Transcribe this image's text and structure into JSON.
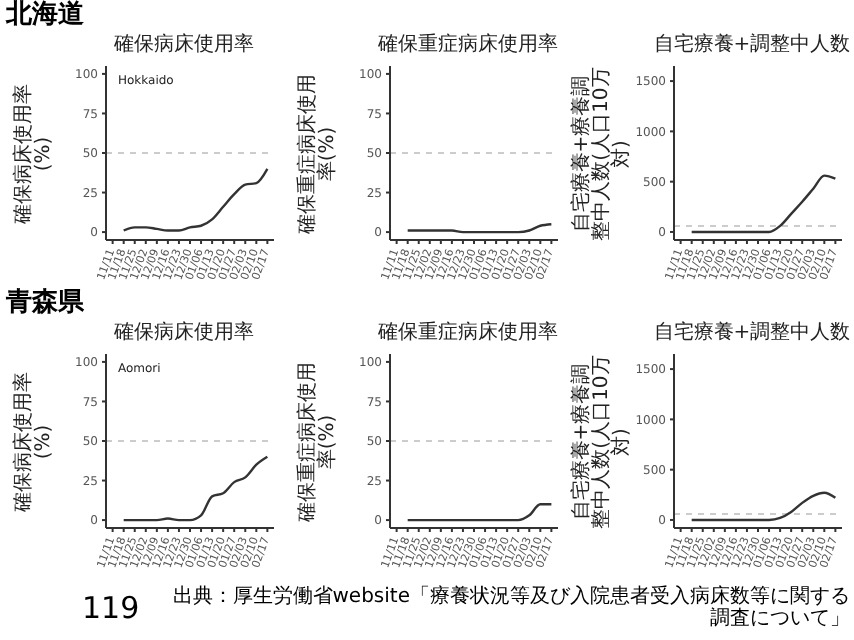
{
  "chart_data": [
    {
      "type": "line",
      "title": "確保病床使用率",
      "ylabel": "確保病床使用率(%)",
      "annotations": [
        "北海道",
        "Hokkaido"
      ],
      "categories": [
        "11/11",
        "11/18",
        "11/25",
        "12/02",
        "12/09",
        "12/16",
        "12/23",
        "12/30",
        "01/06",
        "01/13",
        "01/20",
        "01/27",
        "02/03",
        "02/10",
        "02/17"
      ],
      "color": "#333333",
      "values": [
        null,
        1,
        3,
        3,
        2,
        1,
        1,
        3,
        4,
        8,
        16,
        24,
        30,
        31,
        40
      ],
      "ylim": [
        -5,
        105
      ],
      "yticks": [
        0,
        25,
        50,
        75,
        100
      ],
      "ref_lines": [
        {
          "axis": "y",
          "value": 50,
          "color": "#cccccc",
          "line_style": "dashed"
        }
      ],
      "grid": false,
      "legend": false,
      "marker": "none",
      "line_style": "solid"
    },
    {
      "type": "line",
      "title": "確保重症病床使用率",
      "ylabel": "確保重症病床使用率(%)",
      "categories": [
        "11/11",
        "11/18",
        "11/25",
        "12/02",
        "12/09",
        "12/16",
        "12/23",
        "12/30",
        "01/06",
        "01/13",
        "01/20",
        "01/27",
        "02/03",
        "02/10",
        "02/17"
      ],
      "color": "#333333",
      "values": [
        null,
        1,
        1,
        1,
        1,
        1,
        0,
        0,
        0,
        0,
        0,
        0,
        1,
        4,
        5
      ],
      "ylim": [
        -5,
        105
      ],
      "yticks": [
        0,
        25,
        50,
        75,
        100
      ],
      "ref_lines": [
        {
          "axis": "y",
          "value": 50,
          "color": "#cccccc",
          "line_style": "dashed"
        }
      ],
      "grid": false,
      "legend": false,
      "marker": "none",
      "line_style": "solid"
    },
    {
      "type": "line",
      "title": "自宅療養+調整中人数",
      "ylabel": "自宅療養+療養調整中人数(人口10万対)",
      "categories": [
        "11/11",
        "11/18",
        "11/25",
        "12/02",
        "12/09",
        "12/16",
        "12/23",
        "12/30",
        "01/06",
        "01/13",
        "01/20",
        "01/27",
        "02/03",
        "02/10",
        "02/17"
      ],
      "color": "#333333",
      "values": [
        null,
        0,
        0,
        0,
        0,
        0,
        0,
        0,
        0,
        60,
        180,
        300,
        430,
        560,
        530
      ],
      "ylim": [
        -80,
        1650
      ],
      "yticks": [
        0,
        500,
        1000,
        1500
      ],
      "ref_lines": [
        {
          "axis": "y",
          "value": 60,
          "color": "#cccccc",
          "line_style": "dashed"
        }
      ],
      "grid": false,
      "legend": false,
      "marker": "none",
      "line_style": "solid"
    },
    {
      "type": "line",
      "title": "確保病床使用率",
      "ylabel": "確保病床使用率(%)",
      "annotations": [
        "青森県",
        "Aomori"
      ],
      "categories": [
        "11/11",
        "11/18",
        "11/25",
        "12/02",
        "12/09",
        "12/16",
        "12/23",
        "12/30",
        "01/06",
        "01/13",
        "01/20",
        "01/27",
        "02/03",
        "02/10",
        "02/17"
      ],
      "color": "#333333",
      "values": [
        null,
        0,
        0,
        0,
        0,
        1,
        0,
        0,
        3,
        15,
        17,
        24,
        27,
        35,
        40
      ],
      "ylim": [
        -5,
        105
      ],
      "yticks": [
        0,
        25,
        50,
        75,
        100
      ],
      "ref_lines": [
        {
          "axis": "y",
          "value": 50,
          "color": "#cccccc",
          "line_style": "dashed"
        }
      ],
      "grid": false,
      "legend": false,
      "marker": "none",
      "line_style": "solid"
    },
    {
      "type": "line",
      "title": "確保重症病床使用率",
      "ylabel": "確保重症病床使用率(%)",
      "categories": [
        "11/11",
        "11/18",
        "11/25",
        "12/02",
        "12/09",
        "12/16",
        "12/23",
        "12/30",
        "01/06",
        "01/13",
        "01/20",
        "01/27",
        "02/03",
        "02/10",
        "02/17"
      ],
      "color": "#333333",
      "values": [
        null,
        0,
        0,
        0,
        0,
        0,
        0,
        0,
        0,
        0,
        0,
        0,
        3,
        10,
        10
      ],
      "ylim": [
        -5,
        105
      ],
      "yticks": [
        0,
        25,
        50,
        75,
        100
      ],
      "ref_lines": [
        {
          "axis": "y",
          "value": 50,
          "color": "#cccccc",
          "line_style": "dashed"
        }
      ],
      "grid": false,
      "legend": false,
      "marker": "none",
      "line_style": "solid"
    },
    {
      "type": "line",
      "title": "自宅療養+調整中人数",
      "ylabel": "自宅療養+療養調整中人数(人口10万対)",
      "annotations": [
        "119",
        "出典：厚生労働省website「療養状況等及び入院患者受入病床数等に関する調査について」"
      ],
      "categories": [
        "11/11",
        "11/18",
        "11/25",
        "12/02",
        "12/09",
        "12/16",
        "12/23",
        "12/30",
        "01/06",
        "01/13",
        "01/20",
        "01/27",
        "02/03",
        "02/10",
        "02/17"
      ],
      "color": "#333333",
      "values": [
        null,
        0,
        0,
        0,
        0,
        0,
        0,
        0,
        0,
        20,
        80,
        170,
        240,
        270,
        220
      ],
      "ylim": [
        -80,
        1650
      ],
      "yticks": [
        0,
        500,
        1000,
        1500
      ],
      "ref_lines": [
        {
          "axis": "y",
          "value": 60,
          "color": "#cccccc",
          "line_style": "dashed"
        }
      ],
      "grid": false,
      "legend": false,
      "marker": "none",
      "line_style": "solid"
    }
  ]
}
